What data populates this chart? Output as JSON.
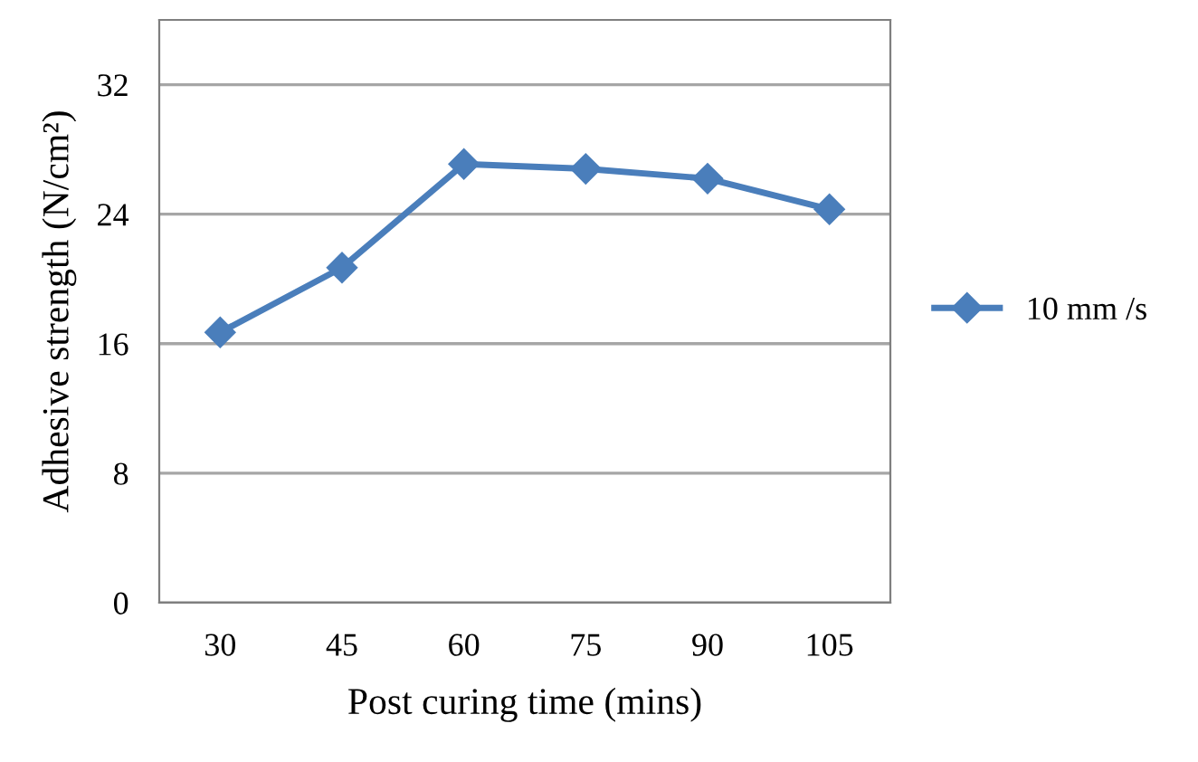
{
  "chart_data": {
    "type": "line",
    "xlabel": "Post curing time (mins)",
    "ylabel": "Adhesive strength (N/cm²)",
    "categories": [
      "30",
      "45",
      "60",
      "75",
      "90",
      "105"
    ],
    "series": [
      {
        "name": "10 mm /s",
        "color": "#4a7ebb",
        "values": [
          16.7,
          20.7,
          27.1,
          26.8,
          26.2,
          24.3
        ]
      }
    ],
    "ylim": [
      0,
      36
    ],
    "yticks": [
      0,
      8,
      16,
      24,
      32
    ],
    "grid": "y",
    "legend": "right",
    "marker": "diamond",
    "line_style": "solid"
  }
}
